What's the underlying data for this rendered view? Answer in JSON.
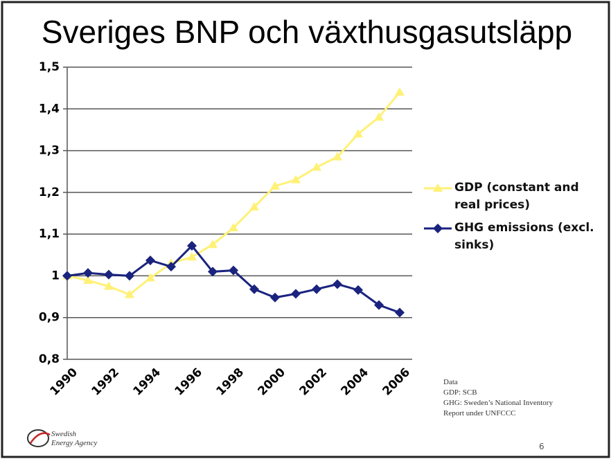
{
  "chart_data": {
    "type": "line",
    "title": "Sveriges BNP och växthusgasutsläpp",
    "categories": [
      "1990",
      null,
      "1992",
      null,
      "1994",
      null,
      "1996",
      null,
      "1998",
      null,
      "2000",
      null,
      "2002",
      null,
      "2004",
      null,
      "2006"
    ],
    "series": [
      {
        "name": "GDP (constant and real prices)",
        "color": "#fff176",
        "marker": "triangle",
        "values": [
          1.0,
          0.989,
          0.975,
          0.955,
          0.995,
          1.03,
          1.045,
          1.075,
          1.115,
          1.165,
          1.215,
          1.23,
          1.26,
          1.285,
          1.34,
          1.38,
          1.44
        ]
      },
      {
        "name": "GHG emissions (excl. sinks)",
        "color": "#1a237e",
        "marker": "diamond",
        "values": [
          1.0,
          1.007,
          1.003,
          1.0,
          1.037,
          1.022,
          1.072,
          1.01,
          1.013,
          0.968,
          0.948,
          0.957,
          0.968,
          0.98,
          0.966,
          0.93,
          0.912
        ]
      }
    ],
    "ylim": [
      0.8,
      1.5
    ],
    "yticks": [
      {
        "value": 0.8,
        "label": "0,8"
      },
      {
        "value": 0.9,
        "label": "0,9"
      },
      1,
      {
        "value": 1.1,
        "label": "1,1"
      },
      {
        "value": 1.2,
        "label": "1,2"
      },
      {
        "value": 1.3,
        "label": "1,3"
      },
      {
        "value": 1.4,
        "label": "1,4"
      },
      {
        "value": 1.5,
        "label": "1,5"
      }
    ],
    "grid": true,
    "legend": "right"
  },
  "footnote": [
    "Data",
    "GDP: SCB",
    "GHG: Sweden’s National Inventory",
    "Report under UNFCCC"
  ],
  "logo": [
    "Swedish",
    "Energy Agency"
  ],
  "page_number": "6"
}
